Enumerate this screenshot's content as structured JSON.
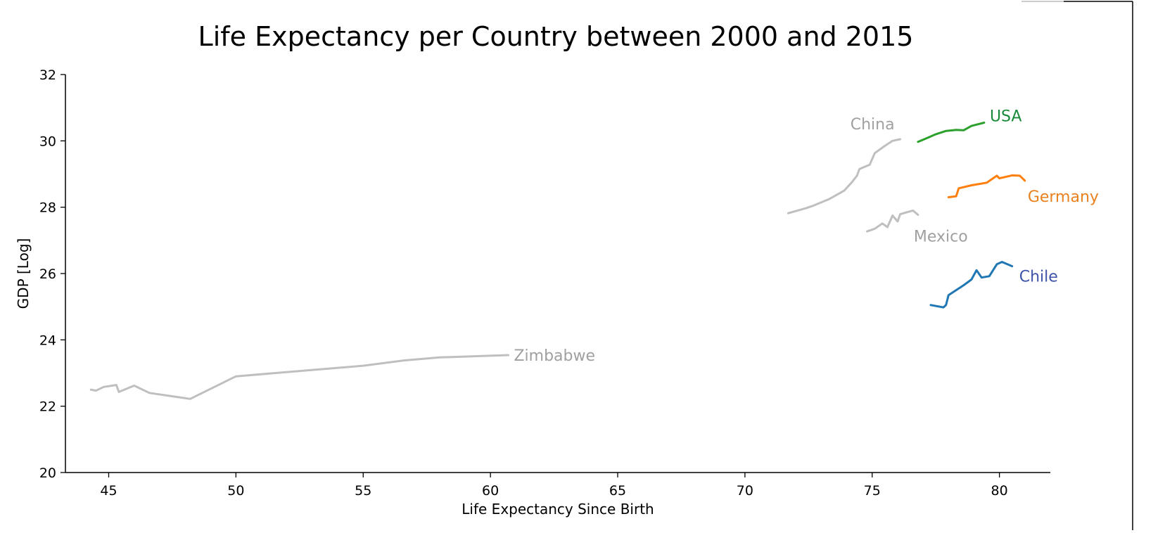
{
  "chart_data": {
    "type": "line",
    "title": "Life Expectancy per Country between 2000 and 2015",
    "xlabel": "Life Expectancy Since Birth",
    "ylabel": "GDP [Log]",
    "xlim": [
      43.3,
      82.0
    ],
    "ylim": [
      20,
      32
    ],
    "xticks": [
      45,
      50,
      55,
      60,
      65,
      70,
      75,
      80
    ],
    "yticks": [
      20,
      22,
      24,
      26,
      28,
      30,
      32
    ],
    "grid": false,
    "legend": "none",
    "series": [
      {
        "name": "Zimbabwe",
        "color": "#bfbfbf",
        "label_color": "#a0a0a0",
        "x": [
          44.3,
          44.5,
          44.8,
          45.3,
          45.4,
          46.0,
          46.6,
          48.2,
          50.0,
          55.0,
          56.6,
          58.0,
          60.7
        ],
        "y": [
          22.5,
          22.47,
          22.58,
          22.64,
          22.43,
          22.62,
          22.4,
          22.22,
          22.9,
          23.22,
          23.38,
          23.47,
          23.54
        ]
      },
      {
        "name": "China",
        "color": "#bfbfbf",
        "label_color": "#a0a0a0",
        "x": [
          71.7,
          72.4,
          72.7,
          73.3,
          73.9,
          74.2,
          74.4,
          74.5,
          74.9,
          75.1,
          75.5,
          75.8,
          76.1
        ],
        "y": [
          27.82,
          27.97,
          28.05,
          28.24,
          28.5,
          28.75,
          28.95,
          29.15,
          29.28,
          29.63,
          29.85,
          30.0,
          30.05
        ]
      },
      {
        "name": "USA",
        "color": "#2ca02c",
        "label_color": "#1a8a3a",
        "x": [
          76.8,
          77.2,
          77.5,
          77.9,
          78.3,
          78.6,
          78.9,
          79.2,
          79.4
        ],
        "y": [
          29.97,
          30.1,
          30.2,
          30.3,
          30.33,
          30.32,
          30.45,
          30.51,
          30.55
        ]
      },
      {
        "name": "Germany",
        "color": "#ff7f0e",
        "label_color": "#e8811f",
        "x": [
          78.0,
          78.3,
          78.4,
          78.9,
          79.5,
          79.9,
          80.0,
          80.5,
          80.8,
          81.0
        ],
        "y": [
          28.3,
          28.33,
          28.57,
          28.66,
          28.74,
          28.95,
          28.87,
          28.96,
          28.95,
          28.8
        ]
      },
      {
        "name": "Mexico",
        "color": "#bfbfbf",
        "label_color": "#a0a0a0",
        "x": [
          74.8,
          75.1,
          75.4,
          75.6,
          75.8,
          76.0,
          76.1,
          76.6,
          76.8
        ],
        "y": [
          27.27,
          27.35,
          27.51,
          27.4,
          27.75,
          27.57,
          27.79,
          27.9,
          27.77
        ]
      },
      {
        "name": "Chile",
        "color": "#1f77b4",
        "label_color": "#3d54a8",
        "x": [
          77.3,
          77.8,
          77.9,
          78.0,
          78.6,
          78.9,
          79.1,
          79.3,
          79.6,
          79.9,
          80.1,
          80.5
        ],
        "y": [
          25.05,
          24.98,
          25.05,
          25.35,
          25.65,
          25.82,
          26.1,
          25.88,
          25.92,
          26.28,
          26.35,
          26.22
        ]
      }
    ]
  }
}
